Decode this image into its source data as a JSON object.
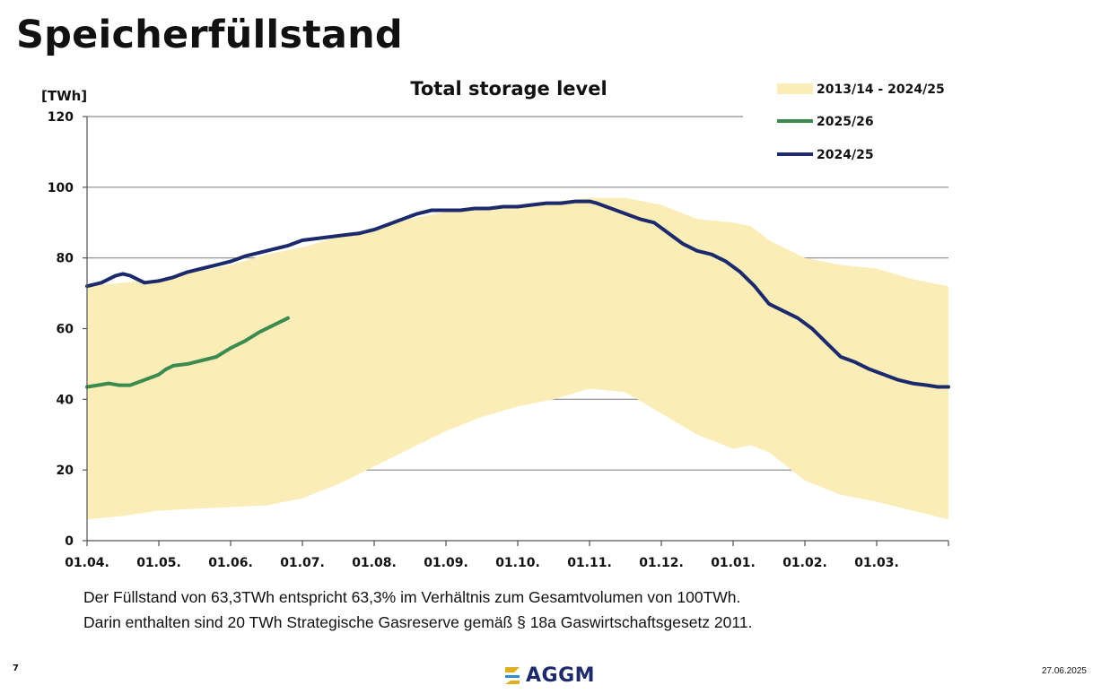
{
  "page": {
    "title": "Speicherfüllstand",
    "page_number": "7",
    "date": "27.06.2025",
    "logo_text": "AGGM",
    "notes": [
      "Der Füllstand von 63,3TWh entspricht 63,3% im Verhältnis zum Gesamtvolumen von 100TWh.",
      "Darin enthalten sind 20 TWh Strategische Gasreserve gemäß § 18a Gaswirtschaftsgesetz 2011."
    ]
  },
  "colors": {
    "band": "#fbedb8",
    "series_2025": "#3b8a4e",
    "series_2024": "#1c2a6b",
    "grid": "#8a8a8a",
    "logo_icon": "#e0b020",
    "logo_icon_alt": "#2b8fd0"
  },
  "chart_data": {
    "type": "area",
    "title": "Total storage level",
    "ylabel": "[TWh]",
    "ylim": [
      0,
      120
    ],
    "yticks": [
      0,
      20,
      40,
      60,
      80,
      100,
      120
    ],
    "xlim": [
      0,
      12
    ],
    "x_unit_note": "months starting 01.04.",
    "xticks": [
      {
        "pos": 0,
        "label": "01.04."
      },
      {
        "pos": 1,
        "label": "01.05."
      },
      {
        "pos": 2,
        "label": "01.06."
      },
      {
        "pos": 3,
        "label": "01.07."
      },
      {
        "pos": 4,
        "label": "01.08."
      },
      {
        "pos": 5,
        "label": "01.09."
      },
      {
        "pos": 6,
        "label": "01.10."
      },
      {
        "pos": 7,
        "label": "01.11."
      },
      {
        "pos": 8,
        "label": "01.12."
      },
      {
        "pos": 9,
        "label": "01.01."
      },
      {
        "pos": 10,
        "label": "01.02."
      },
      {
        "pos": 11,
        "label": "01.03."
      }
    ],
    "grid": true,
    "legend_position": "top-right",
    "band": {
      "name": "2013/14 - 2024/25",
      "x": [
        0,
        0.5,
        1,
        1.5,
        2,
        2.5,
        3,
        3.5,
        4,
        4.5,
        5,
        5.5,
        6,
        6.5,
        7,
        7.5,
        8,
        8.5,
        9,
        9.25,
        9.5,
        10,
        10.5,
        11,
        11.5,
        12
      ],
      "upper": [
        72,
        73,
        74,
        76,
        78,
        81,
        83,
        86,
        88,
        91,
        93,
        94,
        95,
        96,
        97,
        97,
        95,
        91,
        90,
        89,
        85,
        80,
        78,
        77,
        74,
        72
      ],
      "lower": [
        6,
        7,
        8.5,
        9,
        9.5,
        10,
        12,
        16,
        21,
        26,
        31,
        35,
        38,
        40,
        43,
        42,
        36,
        30,
        26,
        27,
        25,
        17,
        13,
        11,
        8.5,
        6
      ]
    },
    "series": [
      {
        "name": "2025/26",
        "x": [
          0,
          0.15,
          0.3,
          0.45,
          0.6,
          0.8,
          1.0,
          1.1,
          1.2,
          1.4,
          1.6,
          1.8,
          2.0,
          2.2,
          2.4,
          2.6,
          2.8
        ],
        "values": [
          43.5,
          44,
          44.5,
          44,
          44,
          45.5,
          47,
          48.5,
          49.5,
          50,
          51,
          52,
          54.5,
          56.5,
          59,
          61,
          63
        ]
      },
      {
        "name": "2024/25",
        "x": [
          0,
          0.2,
          0.4,
          0.5,
          0.6,
          0.8,
          1.0,
          1.2,
          1.4,
          1.6,
          1.8,
          2.0,
          2.2,
          2.4,
          2.6,
          2.8,
          3.0,
          3.2,
          3.4,
          3.6,
          3.8,
          4.0,
          4.2,
          4.4,
          4.6,
          4.8,
          5.0,
          5.2,
          5.4,
          5.6,
          5.8,
          6.0,
          6.2,
          6.4,
          6.6,
          6.8,
          7.0,
          7.1,
          7.3,
          7.5,
          7.7,
          7.9,
          8.1,
          8.3,
          8.5,
          8.7,
          8.9,
          9.1,
          9.3,
          9.5,
          9.7,
          9.9,
          10.1,
          10.3,
          10.5,
          10.7,
          10.9,
          11.1,
          11.3,
          11.5,
          11.7,
          11.85,
          12
        ],
        "values": [
          72,
          73,
          75,
          75.5,
          75,
          73,
          73.5,
          74.5,
          76,
          77,
          78,
          79,
          80.5,
          81.5,
          82.5,
          83.5,
          85,
          85.5,
          86,
          86.5,
          87,
          88,
          89.5,
          91,
          92.5,
          93.5,
          93.5,
          93.5,
          94,
          94,
          94.5,
          94.5,
          95,
          95.5,
          95.5,
          96,
          96,
          95.5,
          94,
          92.5,
          91,
          90,
          87,
          84,
          82,
          81,
          79,
          76,
          72,
          67,
          65,
          63,
          60,
          56,
          52,
          50.5,
          48.5,
          47,
          45.5,
          44.5,
          44,
          43.5,
          43.5
        ]
      }
    ]
  }
}
